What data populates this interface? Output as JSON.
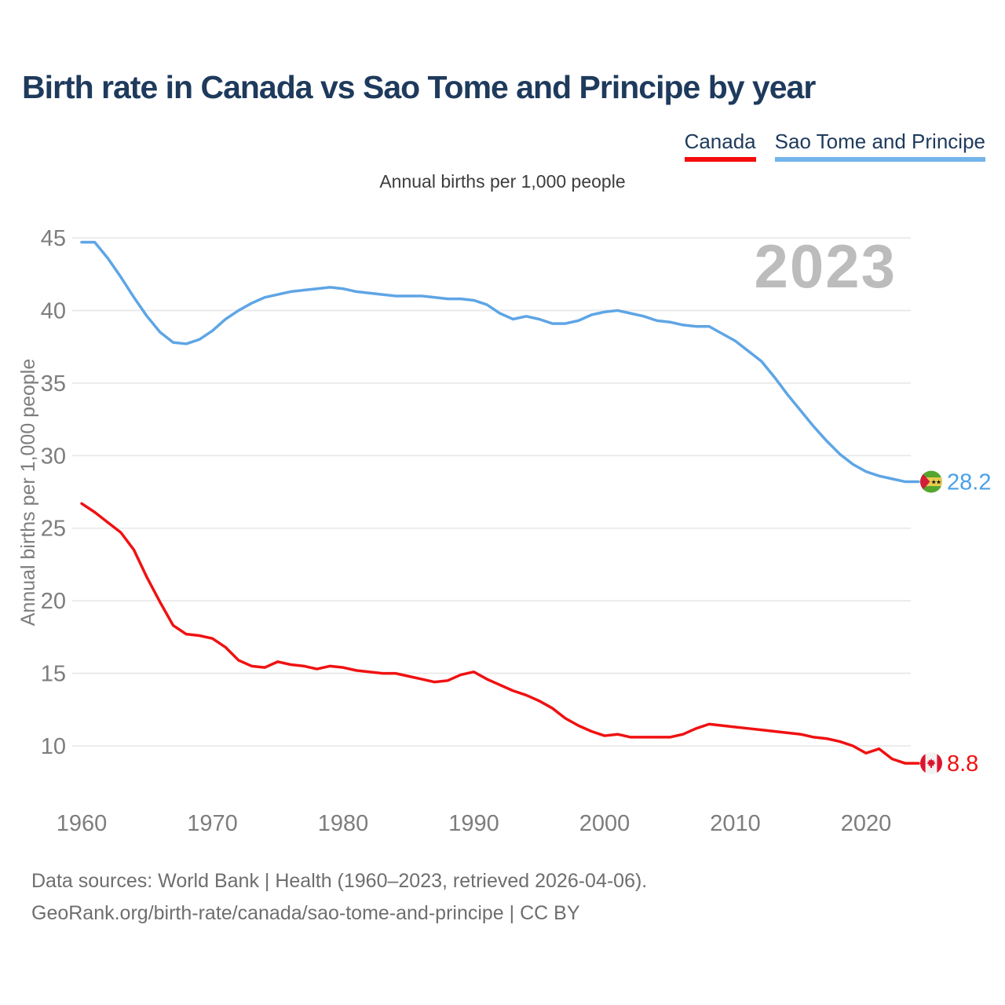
{
  "legend": {
    "items": [
      {
        "label": "Canada",
        "color": "#f50c0c"
      },
      {
        "label": "Sao Tome and Principe",
        "color": "#74b4ea"
      }
    ]
  },
  "chart_data": {
    "type": "line",
    "title": "Birth rate in Canada vs Sao Tome and Principe by year",
    "subtitle": "Annual births per 1,000 people",
    "ylabel": "Annual births per 1,000 people",
    "watermark": "2023",
    "xlim": [
      1960,
      2023
    ],
    "ylim": [
      8,
      46
    ],
    "xticks": [
      1960,
      1970,
      1980,
      1990,
      2000,
      2010,
      2020
    ],
    "yticks": [
      10,
      15,
      20,
      25,
      30,
      35,
      40,
      45
    ],
    "grid": "horizontal",
    "legend_position": "top-right",
    "x": [
      1960,
      1961,
      1962,
      1963,
      1964,
      1965,
      1966,
      1967,
      1968,
      1969,
      1970,
      1971,
      1972,
      1973,
      1974,
      1975,
      1976,
      1977,
      1978,
      1979,
      1980,
      1981,
      1982,
      1983,
      1984,
      1985,
      1986,
      1987,
      1988,
      1989,
      1990,
      1991,
      1992,
      1993,
      1994,
      1995,
      1996,
      1997,
      1998,
      1999,
      2000,
      2001,
      2002,
      2003,
      2004,
      2005,
      2006,
      2007,
      2008,
      2009,
      2010,
      2011,
      2012,
      2013,
      2014,
      2015,
      2016,
      2017,
      2018,
      2019,
      2020,
      2021,
      2022,
      2023
    ],
    "series": [
      {
        "name": "Canada",
        "color": "#f01111",
        "label_color": "#f01111",
        "end_label": "8.8",
        "flag": "canada",
        "values": [
          26.7,
          26.1,
          25.4,
          24.7,
          23.5,
          21.6,
          19.9,
          18.3,
          17.7,
          17.6,
          17.4,
          16.8,
          15.9,
          15.5,
          15.4,
          15.8,
          15.6,
          15.5,
          15.3,
          15.5,
          15.4,
          15.2,
          15.1,
          15.0,
          15.0,
          14.8,
          14.6,
          14.4,
          14.5,
          14.9,
          15.1,
          14.6,
          14.2,
          13.8,
          13.5,
          13.1,
          12.6,
          11.9,
          11.4,
          11.0,
          10.7,
          10.8,
          10.6,
          10.6,
          10.6,
          10.6,
          10.8,
          11.2,
          11.5,
          11.4,
          11.3,
          11.2,
          11.1,
          11.0,
          10.9,
          10.8,
          10.6,
          10.5,
          10.3,
          10.0,
          9.5,
          9.8,
          9.1,
          8.8
        ]
      },
      {
        "name": "Sao Tome and Principe",
        "color": "#5ea5e5",
        "label_color": "#4aa0e8",
        "end_label": "28.2",
        "flag": "sao-tome-and-principe",
        "values": [
          44.7,
          44.7,
          43.6,
          42.3,
          40.9,
          39.6,
          38.5,
          37.8,
          37.7,
          38.0,
          38.6,
          39.4,
          40.0,
          40.5,
          40.9,
          41.1,
          41.3,
          41.4,
          41.5,
          41.6,
          41.5,
          41.3,
          41.2,
          41.1,
          41.0,
          41.0,
          41.0,
          40.9,
          40.8,
          40.8,
          40.7,
          40.4,
          39.8,
          39.4,
          39.6,
          39.4,
          39.1,
          39.1,
          39.3,
          39.7,
          39.9,
          40.0,
          39.8,
          39.6,
          39.3,
          39.2,
          39.0,
          38.9,
          38.9,
          38.4,
          37.9,
          37.2,
          36.5,
          35.4,
          34.2,
          33.1,
          32.0,
          31.0,
          30.1,
          29.4,
          28.9,
          28.6,
          28.4,
          28.2
        ]
      }
    ]
  },
  "footer": {
    "line1": "Data sources: World Bank | Health (1960–2023, retrieved 2026-04-06).",
    "line2": "GeoRank.org/birth-rate/canada/sao-tome-and-principe | CC BY"
  }
}
